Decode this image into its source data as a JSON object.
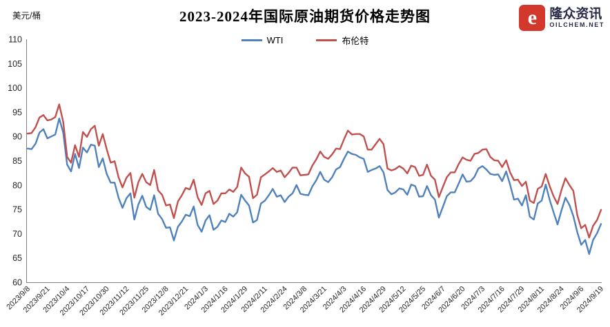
{
  "title": "2023-2024年国际原油期货价格走势图",
  "y_axis_unit": "美元/桶",
  "logo": {
    "brand": "隆众资讯",
    "site": "OILCHEM.NET",
    "icon_glyph": "e",
    "icon_color": "#D2382C",
    "text_color": "#282C47"
  },
  "legend": [
    {
      "label": "WTI",
      "color": "#4F81BD"
    },
    {
      "label": "布伦特",
      "color": "#C0504D"
    }
  ],
  "chart_data": {
    "type": "line",
    "title": "2023-2024年国际原油期货价格走势图",
    "xlabel": "",
    "ylabel": "美元/桶",
    "ylim": [
      60,
      110
    ],
    "y_ticks": [
      60,
      65,
      70,
      75,
      80,
      85,
      90,
      95,
      100,
      105,
      110
    ],
    "grid": false,
    "legend_position": "top-center",
    "x_tick_labels": [
      "2023/9/8",
      "2023/9/21",
      "2023/10/4",
      "2023/10/17",
      "2023/10/30",
      "2023/11/12",
      "2023/11/25",
      "2023/12/8",
      "2023/12/21",
      "2024/1/3",
      "2024/1/16",
      "2024/1/29",
      "2024/2/11",
      "2024/2/24",
      "2024/3/8",
      "2024/3/21",
      "2024/4/3",
      "2024/4/16",
      "2024/4/29",
      "2024/5/12",
      "2024/5/25",
      "2024/6/7",
      "2024/6/20",
      "2024/7/3",
      "2024/7/16",
      "2024/7/29",
      "2024/8/11",
      "2024/8/24",
      "2024/9/6",
      "2024/9/19"
    ],
    "points_per_tick_interval": 5,
    "series": [
      {
        "name": "WTI",
        "color": "#4F81BD",
        "values": [
          87.5,
          87.4,
          88.5,
          90.8,
          91.5,
          89.6,
          90.0,
          90.4,
          93.7,
          90.8,
          84.2,
          82.8,
          86.4,
          83.5,
          87.7,
          86.7,
          88.3,
          88.1,
          83.7,
          85.5,
          82.3,
          80.5,
          80.5,
          77.4,
          75.3,
          77.3,
          78.3,
          72.9,
          76.0,
          77.8,
          75.5,
          74.9,
          77.9,
          74.1,
          73.0,
          71.2,
          71.3,
          68.6,
          71.4,
          72.5,
          73.9,
          73.6,
          75.6,
          71.8,
          70.4,
          72.7,
          73.8,
          70.8,
          71.4,
          72.7,
          72.4,
          74.1,
          73.5,
          74.4,
          78.0,
          76.8,
          75.8,
          72.3,
          72.8,
          76.2,
          76.8,
          77.9,
          79.2,
          77.6,
          77.9,
          76.5,
          77.6,
          78.3,
          80.0,
          78.2,
          78.0,
          77.9,
          79.7,
          81.0,
          82.7,
          81.1,
          80.6,
          81.6,
          83.2,
          83.7,
          85.4,
          86.9,
          86.4,
          86.2,
          85.7,
          85.4,
          82.7,
          83.1,
          83.4,
          83.9,
          82.6,
          79.0,
          78.1,
          78.5,
          79.3,
          79.1,
          78.0,
          80.1,
          79.8,
          77.6,
          77.7,
          79.8,
          77.9,
          77.0,
          73.3,
          75.5,
          77.7,
          78.5,
          78.5,
          80.3,
          82.2,
          80.7,
          80.8,
          81.7,
          83.4,
          83.9,
          83.2,
          82.3,
          82.1,
          82.2,
          80.8,
          82.8,
          80.1,
          77.0,
          77.2,
          75.8,
          77.9,
          73.5,
          72.9,
          76.2,
          76.8,
          80.1,
          77.0,
          74.4,
          71.9,
          74.8,
          77.4,
          75.9,
          73.6,
          70.3,
          67.7,
          68.7,
          65.8,
          68.7,
          70.1,
          72.0
        ]
      },
      {
        "name": "布伦特",
        "color": "#C0504D",
        "values": [
          90.6,
          90.7,
          91.9,
          93.9,
          94.4,
          93.3,
          93.5,
          94.0,
          96.6,
          93.0,
          85.8,
          84.6,
          88.2,
          85.8,
          90.9,
          89.9,
          91.5,
          92.2,
          88.1,
          90.5,
          87.4,
          84.6,
          84.9,
          81.6,
          79.5,
          81.5,
          82.5,
          77.4,
          80.6,
          82.3,
          80.6,
          80.0,
          83.1,
          78.9,
          78.0,
          75.8,
          76.0,
          73.2,
          76.6,
          77.9,
          79.4,
          79.1,
          81.1,
          77.5,
          75.9,
          78.3,
          78.8,
          76.1,
          76.8,
          78.3,
          78.3,
          79.1,
          78.6,
          79.6,
          83.6,
          82.4,
          81.7,
          77.3,
          78.0,
          81.6,
          82.2,
          82.8,
          83.5,
          82.7,
          83.0,
          81.6,
          82.5,
          83.6,
          83.6,
          82.0,
          82.1,
          82.2,
          84.0,
          85.3,
          86.9,
          85.8,
          85.4,
          86.3,
          87.5,
          87.4,
          89.4,
          91.2,
          90.4,
          90.5,
          90.5,
          90.0,
          87.3,
          87.3,
          88.4,
          89.5,
          88.4,
          83.4,
          83.0,
          83.3,
          83.9,
          83.4,
          82.4,
          84.0,
          83.7,
          81.9,
          82.1,
          84.2,
          81.9,
          81.1,
          77.5,
          79.6,
          81.6,
          82.6,
          82.6,
          84.3,
          85.7,
          85.2,
          85.0,
          86.4,
          86.6,
          87.3,
          87.4,
          85.8,
          85.1,
          85.0,
          83.7,
          85.1,
          82.6,
          81.0,
          81.1,
          79.8,
          80.7,
          76.8,
          76.3,
          79.2,
          79.7,
          82.3,
          79.8,
          77.7,
          76.1,
          79.0,
          81.4,
          80.0,
          78.8,
          73.8,
          71.1,
          71.8,
          69.2,
          71.6,
          72.8,
          74.9
        ]
      }
    ],
    "axis_color": "#808080",
    "tick_label_color": "#262626"
  }
}
